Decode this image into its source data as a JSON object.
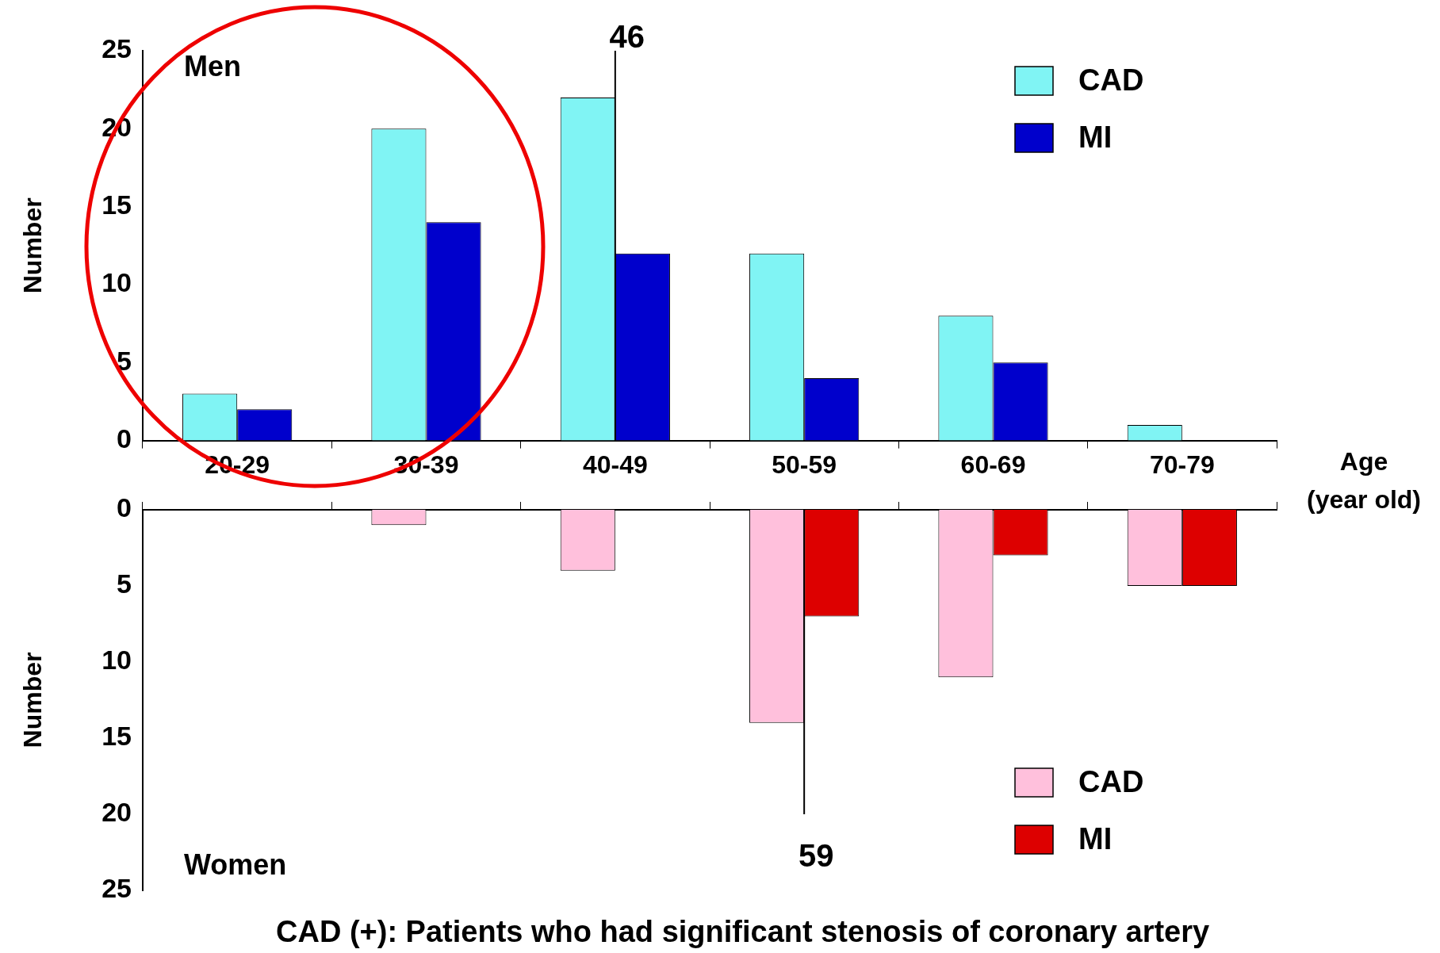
{
  "chart_data": [
    {
      "type": "bar",
      "categories": [
        "20-29",
        "30-39",
        "40-49",
        "50-59",
        "60-69",
        "70-79"
      ],
      "series": [
        {
          "name": "CAD",
          "color": "#80f4f4",
          "values": [
            3,
            20,
            22,
            12,
            8,
            1
          ]
        },
        {
          "name": "MI",
          "color": "#0000cc",
          "values": [
            2,
            14,
            12,
            4,
            5,
            0
          ]
        }
      ],
      "ylim": [
        0,
        25
      ],
      "yticks": [
        0,
        5,
        10,
        15,
        20,
        25
      ],
      "ylabel": "Number",
      "xlabel": "Age\n(year old)",
      "legend": "top right",
      "ref_lines": [
        {
          "axis": "x",
          "value": "40-49",
          "label": "46"
        }
      ],
      "annotations": [
        "Men"
      ]
    },
    {
      "type": "bar",
      "categories": [
        "20-29",
        "30-39",
        "40-49",
        "50-59",
        "60-69",
        "70-79"
      ],
      "series": [
        {
          "name": "CAD",
          "color": "#ffc0dc",
          "values": [
            0,
            1,
            4,
            14,
            11,
            5
          ]
        },
        {
          "name": "MI",
          "color": "#dd0000",
          "values": [
            0,
            0,
            0,
            7,
            3,
            5
          ]
        }
      ],
      "ylim": [
        25,
        0
      ],
      "yticks": [
        0,
        5,
        10,
        15,
        20,
        25
      ],
      "ylabel": "Number",
      "legend": "bottom right",
      "tick_labels": "y",
      "ref_lines": [
        {
          "axis": "x",
          "value": "50-59",
          "label": "59"
        }
      ],
      "annotations": [
        "Women",
        "CAD (+): Patients who had significant stenosis of coronary artery"
      ]
    }
  ]
}
